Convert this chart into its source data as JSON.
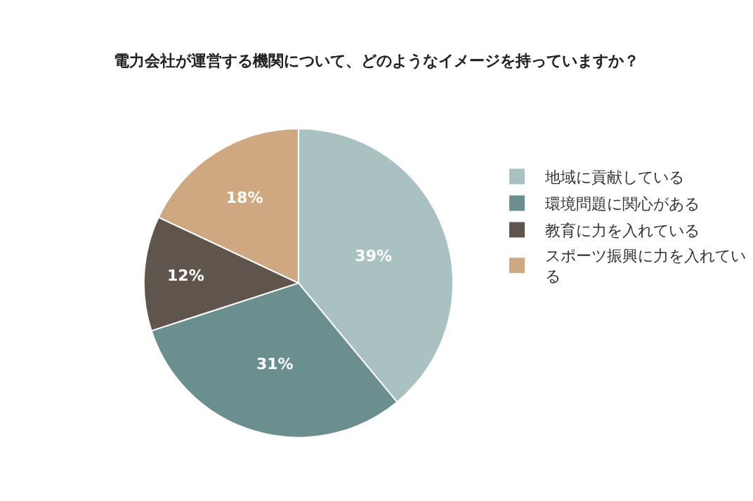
{
  "chart_data": {
    "type": "pie",
    "title": "電力会社が運営する機関について、どのようなイメージを持っていますか？",
    "categories": [
      "地域に貢献している",
      "環境問題に関心がある",
      "教育に力を入れている",
      "スポーツ振興に力を入れている"
    ],
    "values": [
      39,
      31,
      12,
      18
    ],
    "value_labels": [
      "39%",
      "31%",
      "12%",
      "18%"
    ],
    "colors": [
      "#a9c1c0",
      "#6b8e8f",
      "#5f554d",
      "#cfa882"
    ],
    "legend": "right"
  }
}
